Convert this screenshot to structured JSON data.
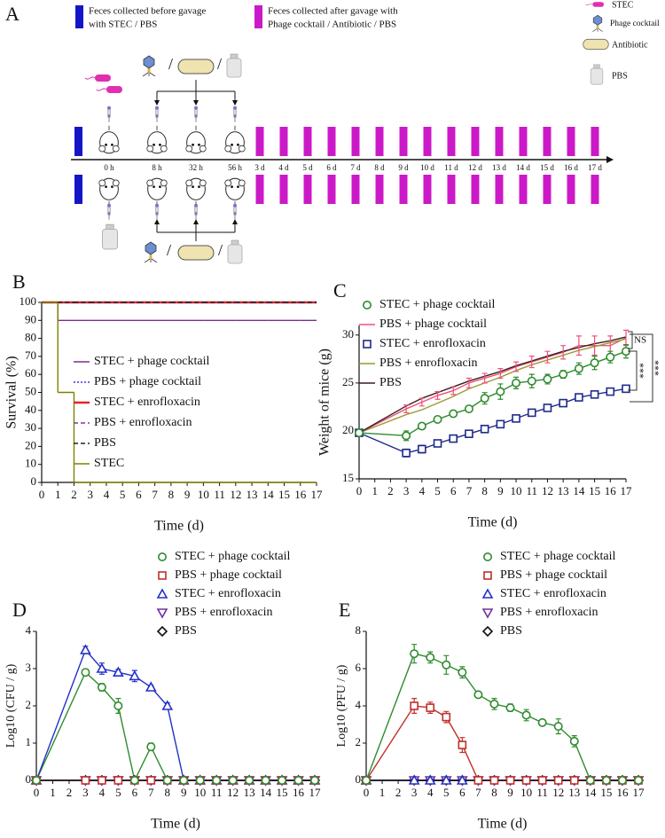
{
  "schematic": {
    "label": "A",
    "legend": [
      [
        "Feces collected before gavage",
        "with STEC / PBS"
      ],
      [
        "Feces collected after gavage with",
        "Phage cocktail / Antibiotic / PBS"
      ]
    ],
    "icons": [
      "STEC",
      "Phage cocktail",
      "Antibiotic",
      "PBS"
    ],
    "timeline": [
      "0 h",
      "8 h",
      "32 h",
      "56 h",
      "3 d",
      "4 d",
      "5 d",
      "6 d",
      "7 d",
      "8 d",
      "9 d",
      "10 d",
      "11 d",
      "12 d",
      "13 d",
      "14 d",
      "15 d",
      "16 d",
      "17 d"
    ]
  },
  "chart_data": [
    {
      "type": "line",
      "label": "B",
      "xlabel": "Time (d)",
      "ylabel": "Survival (%)",
      "step": true,
      "x": [
        0,
        1,
        2,
        3,
        4,
        5,
        6,
        7,
        8,
        9,
        10,
        11,
        12,
        13,
        14,
        15,
        16,
        17
      ],
      "xlim": [
        0,
        17
      ],
      "xticks": [
        0,
        1,
        2,
        3,
        4,
        5,
        6,
        7,
        8,
        9,
        10,
        11,
        12,
        13,
        14,
        15,
        16,
        17
      ],
      "ylim": [
        0,
        100
      ],
      "yticks": [
        0,
        10,
        20,
        30,
        40,
        50,
        60,
        70,
        80,
        90,
        100
      ],
      "series": [
        {
          "name": "STEC + phage cocktail",
          "color": "#7b2d8e",
          "values": [
            100,
            90,
            90,
            90,
            90,
            90,
            90,
            90,
            90,
            90,
            90,
            90,
            90,
            90,
            90,
            90,
            90,
            90
          ]
        },
        {
          "name": "PBS + phage cocktail",
          "color": "#3b3bd4",
          "dash": "dot",
          "values": [
            100,
            100,
            100,
            100,
            100,
            100,
            100,
            100,
            100,
            100,
            100,
            100,
            100,
            100,
            100,
            100,
            100,
            100
          ]
        },
        {
          "name": "STEC + enrofloxacin",
          "color": "#e3262b",
          "values": [
            100,
            100,
            100,
            100,
            100,
            100,
            100,
            100,
            100,
            100,
            100,
            100,
            100,
            100,
            100,
            100,
            100,
            100
          ]
        },
        {
          "name": "PBS + enrofloxacin",
          "color": "#7a3aa8",
          "dash": "dash",
          "values": [
            100,
            100,
            100,
            100,
            100,
            100,
            100,
            100,
            100,
            100,
            100,
            100,
            100,
            100,
            100,
            100,
            100,
            100
          ]
        },
        {
          "name": "PBS",
          "color": "#222222",
          "dash": "dash",
          "values": [
            100,
            100,
            100,
            100,
            100,
            100,
            100,
            100,
            100,
            100,
            100,
            100,
            100,
            100,
            100,
            100,
            100,
            100
          ]
        },
        {
          "name": "STEC",
          "color": "#808000",
          "values": [
            100,
            50,
            0,
            0,
            0,
            0,
            0,
            0,
            0,
            0,
            0,
            0,
            0,
            0,
            0,
            0,
            0,
            0
          ]
        }
      ]
    },
    {
      "type": "line",
      "label": "C",
      "xlabel": "Time (d)",
      "ylabel": "Weight of mice (g)",
      "annotations": [
        "NS",
        "***",
        "***"
      ],
      "x": [
        0,
        3,
        4,
        5,
        6,
        7,
        8,
        9,
        10,
        11,
        12,
        13,
        14,
        15,
        16,
        17
      ],
      "xlim": [
        0,
        17
      ],
      "xticks": [
        0,
        1,
        2,
        3,
        4,
        5,
        6,
        7,
        8,
        9,
        10,
        11,
        12,
        13,
        14,
        15,
        16,
        17
      ],
      "ylim": [
        15,
        31
      ],
      "yticks": [
        15,
        20,
        25,
        30
      ],
      "series": [
        {
          "name": "STEC + phage cocktail",
          "color": "#2e8b2e",
          "marker": "circle",
          "values": [
            19.8,
            19.5,
            20.5,
            21.2,
            21.8,
            22.3,
            23.4,
            24.1,
            25.0,
            25.2,
            25.4,
            25.9,
            26.5,
            27.1,
            27.7,
            28.3
          ],
          "errors": [
            0.3,
            0.5,
            0.3,
            0.3,
            0.3,
            0.3,
            0.6,
            0.8,
            0.6,
            0.7,
            0.5,
            0.4,
            0.6,
            0.7,
            0.6,
            0.7
          ]
        },
        {
          "name": "PBS + phage cocktail",
          "color": "#f0507a",
          "values": [
            19.8,
            22.3,
            23.0,
            23.7,
            24.2,
            25.0,
            25.5,
            26.0,
            26.7,
            27.2,
            27.7,
            28.2,
            28.9,
            28.9,
            28.9,
            29.7
          ],
          "errors": [
            0.3,
            0.4,
            0.4,
            0.4,
            0.4,
            0.5,
            0.5,
            0.5,
            0.5,
            0.6,
            0.6,
            0.7,
            1.0,
            1.0,
            1.0,
            0.8
          ]
        },
        {
          "name": "STEC + enrofloxacin",
          "color": "#1f2a8c",
          "marker": "square",
          "values": [
            19.8,
            17.7,
            18.1,
            18.7,
            19.2,
            19.7,
            20.2,
            20.7,
            21.3,
            21.9,
            22.4,
            22.9,
            23.5,
            23.8,
            24.1,
            24.4
          ],
          "errors": [
            0.3,
            0.4,
            0.4,
            0.3,
            0.3,
            0.3,
            0.3,
            0.3,
            0.2,
            0.2,
            0.2,
            0.2,
            0.2,
            0.2,
            0.2,
            0.2
          ]
        },
        {
          "name": "PBS + enrofloxacin",
          "color": "#9a9a30",
          "values": [
            19.8,
            21.7,
            22.2,
            22.9,
            23.6,
            24.4,
            25.0,
            25.6,
            26.3,
            26.9,
            27.4,
            27.9,
            28.4,
            28.8,
            29.2,
            29.6
          ]
        },
        {
          "name": "PBS",
          "color": "#3a1f1f",
          "values": [
            19.8,
            22.6,
            23.4,
            24.0,
            24.6,
            25.2,
            25.7,
            26.2,
            26.8,
            27.3,
            27.8,
            28.3,
            28.7,
            29.1,
            29.4,
            29.8
          ]
        }
      ]
    },
    {
      "type": "line",
      "label": "D",
      "xlabel": "Time (d)",
      "ylabel": "Log10 (CFU / g)",
      "x": [
        0,
        3,
        4,
        5,
        6,
        7,
        8,
        9,
        10,
        11,
        12,
        13,
        14,
        15,
        16,
        17
      ],
      "xlim": [
        0,
        17
      ],
      "xticks": [
        0,
        1,
        2,
        3,
        4,
        5,
        6,
        7,
        8,
        9,
        10,
        11,
        12,
        13,
        14,
        15,
        16,
        17
      ],
      "ylim": [
        0,
        4
      ],
      "yticks": [
        0,
        1,
        2,
        3,
        4
      ],
      "series": [
        {
          "name": "STEC + phage cocktail",
          "color": "#2e8b2e",
          "marker": "circle",
          "values": [
            0,
            2.9,
            2.5,
            2.0,
            0,
            0.9,
            0,
            0,
            0,
            0,
            0,
            0,
            0,
            0,
            0,
            0
          ],
          "errors": [
            0,
            0.05,
            0.1,
            0.2,
            0,
            0.1,
            0,
            0,
            0,
            0,
            0,
            0,
            0,
            0,
            0,
            0
          ]
        },
        {
          "name": "PBS + phage cocktail",
          "color": "#c0302a",
          "marker": "square",
          "values": [
            0,
            0,
            0,
            0,
            0,
            0,
            0,
            0,
            0,
            0,
            0,
            0,
            0,
            0,
            0,
            0
          ]
        },
        {
          "name": "STEC + enrofloxacin",
          "color": "#2431c8",
          "marker": "triangle",
          "values": [
            0,
            3.5,
            3.0,
            2.9,
            2.8,
            2.5,
            2.0,
            0,
            0,
            0,
            0,
            0,
            0,
            0,
            0,
            0
          ],
          "errors": [
            0,
            0.1,
            0.15,
            0.08,
            0.15,
            0.05,
            0.08,
            0,
            0,
            0,
            0,
            0,
            0,
            0,
            0,
            0
          ]
        },
        {
          "name": "PBS + enrofloxacin",
          "color": "#7030a0",
          "marker": "triangle-down",
          "values": [
            0,
            0,
            0,
            0,
            0,
            0,
            0,
            0,
            0,
            0,
            0,
            0,
            0,
            0,
            0,
            0
          ]
        },
        {
          "name": "PBS",
          "color": "#111111",
          "marker": "diamond",
          "values": [
            0,
            0,
            0,
            0,
            0,
            0,
            0,
            0,
            0,
            0,
            0,
            0,
            0,
            0,
            0,
            0
          ]
        }
      ]
    },
    {
      "type": "line",
      "label": "E",
      "xlabel": "Time (d)",
      "ylabel": "Log10 (PFU / g)",
      "x": [
        0,
        3,
        4,
        5,
        6,
        7,
        8,
        9,
        10,
        11,
        12,
        13,
        14,
        15,
        16,
        17
      ],
      "xlim": [
        0,
        17
      ],
      "xticks": [
        0,
        1,
        2,
        3,
        4,
        5,
        6,
        7,
        8,
        9,
        10,
        11,
        12,
        13,
        14,
        15,
        16,
        17
      ],
      "ylim": [
        0,
        8
      ],
      "yticks": [
        0,
        2,
        4,
        6,
        8
      ],
      "series": [
        {
          "name": "STEC + phage cocktail",
          "color": "#2e8b2e",
          "marker": "circle",
          "values": [
            0,
            6.8,
            6.6,
            6.2,
            5.8,
            4.6,
            4.1,
            3.9,
            3.5,
            3.1,
            2.9,
            2.1,
            0,
            0,
            0,
            0
          ],
          "errors": [
            0,
            0.5,
            0.3,
            0.5,
            0.3,
            0,
            0.3,
            0.2,
            0.3,
            0,
            0.4,
            0.3,
            0,
            0,
            0,
            0
          ]
        },
        {
          "name": "PBS + phage cocktail",
          "color": "#c0302a",
          "marker": "square",
          "values": [
            0,
            4.0,
            3.9,
            3.4,
            1.9,
            0,
            0,
            0,
            0,
            0,
            0,
            0,
            0,
            0,
            0,
            0
          ],
          "errors": [
            0,
            0.4,
            0.3,
            0.3,
            0.4,
            0,
            0,
            0,
            0,
            0,
            0,
            0,
            0,
            0,
            0,
            0
          ]
        },
        {
          "name": "STEC + enrofloxacin",
          "color": "#2431c8",
          "marker": "triangle",
          "values": [
            0,
            0,
            0,
            0,
            0,
            null,
            null,
            null,
            null,
            null,
            null,
            null,
            null,
            null,
            null,
            null
          ]
        },
        {
          "name": "PBS + enrofloxacin",
          "color": "#7030a0",
          "marker": "triangle-down",
          "values": [
            0,
            0,
            0,
            0,
            0,
            0,
            0,
            0,
            0,
            0,
            0,
            0,
            0,
            0,
            0,
            0
          ]
        },
        {
          "name": "PBS",
          "color": "#111111",
          "marker": "diamond",
          "values": [
            0,
            0,
            0,
            0,
            0,
            0,
            0,
            0,
            0,
            0,
            0,
            0,
            0,
            0,
            0,
            0
          ]
        }
      ]
    }
  ]
}
